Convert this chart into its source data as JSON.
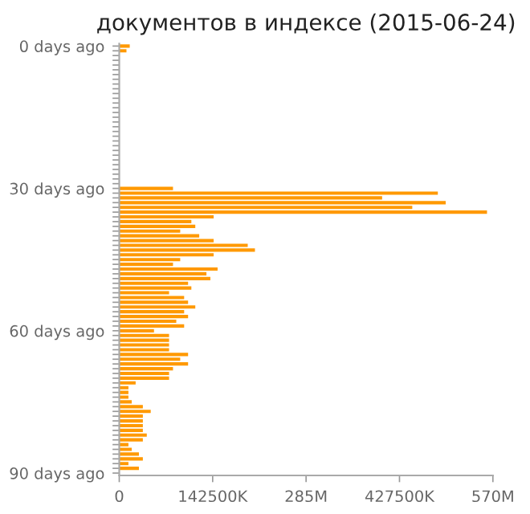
{
  "chart_data": {
    "type": "bar",
    "orientation": "horizontal",
    "title": "документов в индексе (2015-06-24)",
    "categories": [
      "0 days ago",
      null,
      null,
      null,
      null,
      null,
      null,
      null,
      null,
      null,
      null,
      null,
      null,
      null,
      null,
      null,
      null,
      null,
      null,
      null,
      null,
      null,
      null,
      null,
      null,
      null,
      null,
      null,
      null,
      null,
      "30 days ago",
      null,
      null,
      null,
      null,
      null,
      null,
      null,
      null,
      null,
      null,
      null,
      null,
      null,
      null,
      null,
      null,
      null,
      null,
      null,
      null,
      null,
      null,
      null,
      null,
      null,
      null,
      null,
      null,
      null,
      "60 days ago",
      null,
      null,
      null,
      null,
      null,
      null,
      null,
      null,
      null,
      null,
      null,
      null,
      null,
      null,
      null,
      null,
      null,
      null,
      null,
      null,
      null,
      null,
      null,
      null,
      null,
      null,
      null,
      null,
      null,
      "90 days ago"
    ],
    "values": [
      16000000,
      11000000,
      null,
      null,
      null,
      null,
      null,
      null,
      null,
      null,
      null,
      null,
      null,
      null,
      null,
      null,
      null,
      null,
      null,
      null,
      null,
      null,
      null,
      null,
      null,
      null,
      null,
      null,
      null,
      null,
      82000000,
      486000000,
      401000000,
      498000000,
      447000000,
      561000000,
      144000000,
      110000000,
      116000000,
      93000000,
      122000000,
      144000000,
      196000000,
      207000000,
      144000000,
      93000000,
      82000000,
      150000000,
      133000000,
      139000000,
      105000000,
      110000000,
      76000000,
      99000000,
      105000000,
      116000000,
      99000000,
      105000000,
      87000000,
      99000000,
      53000000,
      76000000,
      76000000,
      76000000,
      76000000,
      105000000,
      93000000,
      105000000,
      82000000,
      76000000,
      76000000,
      25000000,
      14000000,
      14000000,
      14000000,
      19000000,
      36000000,
      48000000,
      36000000,
      36000000,
      36000000,
      36000000,
      42000000,
      36000000,
      14000000,
      19000000,
      30000000,
      36000000,
      14000000,
      30000000,
      null
    ],
    "color": "#ff9900",
    "xlim": [
      0,
      570000000
    ],
    "xticks": [
      0,
      {
        "value": 142500000,
        "label": "142500K"
      },
      {
        "value": 285000000,
        "label": "285M"
      },
      {
        "value": 427500000,
        "label": "427500K"
      },
      {
        "value": 570000000,
        "label": "570M"
      }
    ],
    "grid": false
  }
}
